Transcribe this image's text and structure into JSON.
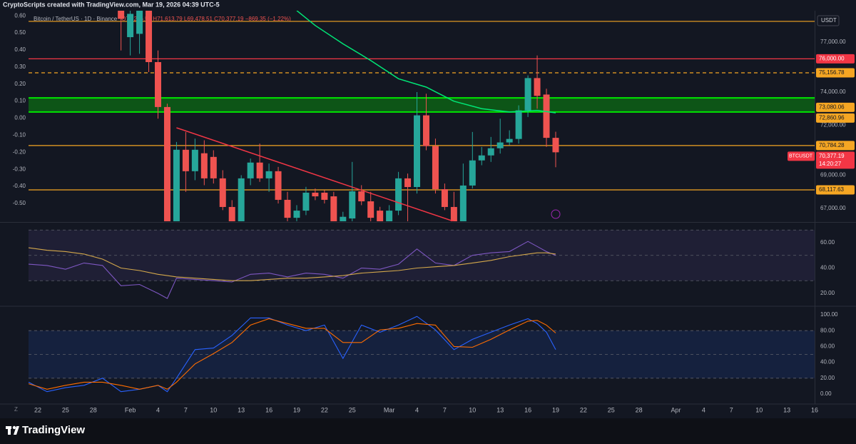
{
  "header": {
    "caption": "CryptoScripts created with TradingView.com, Mar 19, 2026 04:39 UTC-5",
    "symbol": "Bitcoin / TetherUS · 1D · Binance",
    "ohlc": "O71,246.54 H71,613.79 L69,478.51 C70,377.19 −869.35 (−1.22%)"
  },
  "footer": {
    "brand": "TradingView"
  },
  "chart_data": [
    {
      "type": "candlestick",
      "up_color": "#26a69a",
      "down_color": "#ef5350",
      "y_unit": "USDT",
      "x": [
        "2026-01-31",
        "2026-02-01",
        "2026-02-02",
        "2026-02-03",
        "2026-02-04",
        "2026-02-05",
        "2026-02-06",
        "2026-02-07",
        "2026-02-08",
        "2026-02-09",
        "2026-02-10",
        "2026-02-11",
        "2026-02-12",
        "2026-02-13",
        "2026-02-14",
        "2026-02-15",
        "2026-02-16",
        "2026-02-17",
        "2026-02-18",
        "2026-02-19",
        "2026-02-20",
        "2026-02-21",
        "2026-02-22",
        "2026-02-23",
        "2026-02-24",
        "2026-02-25",
        "2026-02-26",
        "2026-02-27",
        "2026-02-28",
        "2026-03-01",
        "2026-03-02",
        "2026-03-03",
        "2026-03-04",
        "2026-03-05",
        "2026-03-06",
        "2026-03-07",
        "2026-03-08",
        "2026-03-09",
        "2026-03-10",
        "2026-03-11",
        "2026-03-12",
        "2026-03-13",
        "2026-03-14",
        "2026-03-15",
        "2026-03-16",
        "2026-03-17",
        "2026-03-18",
        "2026-03-19"
      ],
      "open": [
        79200,
        77300,
        77500,
        78900,
        75800,
        73100,
        62900,
        70530,
        69240,
        70320,
        70100,
        68810,
        67090,
        66220,
        68810,
        69760,
        68810,
        69240,
        67520,
        66440,
        66870,
        67950,
        67950,
        67730,
        66220,
        66400,
        68030,
        67430,
        66870,
        66220,
        66870,
        68810,
        68290,
        72600,
        70750,
        68160,
        67090,
        66220,
        68380,
        69890,
        70190,
        70620,
        70970,
        71180,
        72900,
        74840,
        73850,
        71246.54
      ],
      "high": [
        79500,
        79000,
        79300,
        79300,
        76500,
        73300,
        71000,
        71600,
        71200,
        71100,
        70500,
        69300,
        67500,
        69000,
        70000,
        70900,
        69700,
        69500,
        68000,
        67200,
        68300,
        68200,
        68100,
        68000,
        66800,
        69800,
        68400,
        68000,
        67100,
        67200,
        69200,
        69100,
        74000,
        73900,
        71200,
        68500,
        68000,
        69700,
        71600,
        70700,
        71300,
        72400,
        71700,
        73200,
        75000,
        76200,
        74200,
        71613.79
      ],
      "low": [
        76500,
        76200,
        76300,
        75200,
        72400,
        62700,
        60100,
        68000,
        68700,
        68400,
        68500,
        66900,
        65100,
        65800,
        68400,
        68600,
        68000,
        67300,
        66200,
        66000,
        66600,
        67500,
        67300,
        64500,
        62900,
        66000,
        67200,
        66200,
        65200,
        66000,
        66600,
        66100,
        67900,
        70500,
        67900,
        66900,
        65600,
        66000,
        68200,
        69600,
        69800,
        70300,
        70800,
        70900,
        72500,
        73000,
        70700,
        69478.51
      ],
      "close": [
        78400,
        78700,
        78900,
        75800,
        73100,
        62900,
        70530,
        69240,
        70530,
        68810,
        68810,
        67090,
        66220,
        68810,
        69760,
        68810,
        69240,
        67520,
        66440,
        66870,
        67950,
        67730,
        67520,
        66220,
        66500,
        68030,
        67430,
        66440,
        66220,
        66870,
        68810,
        68290,
        72600,
        70750,
        68160,
        67090,
        66220,
        68380,
        69890,
        70190,
        70620,
        70970,
        71180,
        72900,
        74840,
        73770,
        71246.54,
        70377.19
      ],
      "xlim": [
        "2026-01-21",
        "2026-04-16"
      ],
      "xticks": [
        {
          "value": "2026-01-22",
          "label": "22"
        },
        {
          "value": "2026-01-25",
          "label": "25"
        },
        {
          "value": "2026-01-28",
          "label": "28"
        },
        {
          "value": "2026-02-01",
          "label": "Feb"
        },
        {
          "value": "2026-02-04",
          "label": "4"
        },
        {
          "value": "2026-02-07",
          "label": "7"
        },
        {
          "value": "2026-02-10",
          "label": "10"
        },
        {
          "value": "2026-02-13",
          "label": "13"
        },
        {
          "value": "2026-02-16",
          "label": "16"
        },
        {
          "value": "2026-02-19",
          "label": "19"
        },
        {
          "value": "2026-02-22",
          "label": "22"
        },
        {
          "value": "2026-02-25",
          "label": "25"
        },
        {
          "value": "2026-03-01",
          "label": "Mar"
        },
        {
          "value": "2026-03-04",
          "label": "4"
        },
        {
          "value": "2026-03-07",
          "label": "7"
        },
        {
          "value": "2026-03-10",
          "label": "10"
        },
        {
          "value": "2026-03-13",
          "label": "13"
        },
        {
          "value": "2026-03-16",
          "label": "16"
        },
        {
          "value": "2026-03-19",
          "label": "19"
        },
        {
          "value": "2026-03-22",
          "label": "22"
        },
        {
          "value": "2026-03-25",
          "label": "25"
        },
        {
          "value": "2026-03-28",
          "label": "28"
        },
        {
          "value": "2026-04-01",
          "label": "Apr"
        },
        {
          "value": "2026-04-04",
          "label": "4"
        },
        {
          "value": "2026-04-07",
          "label": "7"
        },
        {
          "value": "2026-04-10",
          "label": "10"
        },
        {
          "value": "2026-04-13",
          "label": "13"
        },
        {
          "value": "2026-04-16",
          "label": "16"
        }
      ],
      "ylim": [
        66230,
        78890
      ],
      "yticks": [
        {
          "value": 77000,
          "label": "77,000.00"
        },
        {
          "value": 74000,
          "label": "74,000.00"
        },
        {
          "value": 72000,
          "label": "72,000.00"
        },
        {
          "value": 69000,
          "label": "69,000.00"
        },
        {
          "value": 67000,
          "label": "67,000.00"
        }
      ],
      "y2lim": [
        -0.605,
        0.63
      ],
      "y2ticks": [
        {
          "value": 0.6,
          "label": "0.60"
        },
        {
          "value": 0.5,
          "label": "0.50"
        },
        {
          "value": 0.4,
          "label": "0.40"
        },
        {
          "value": 0.3,
          "label": "0.30"
        },
        {
          "value": 0.2,
          "label": "0.20"
        },
        {
          "value": 0.1,
          "label": "0.10"
        },
        {
          "value": 0,
          "label": "0.00"
        },
        {
          "value": -0.1,
          "label": "-0.10"
        },
        {
          "value": -0.2,
          "label": "-0.20"
        },
        {
          "value": -0.3,
          "label": "-0.30"
        },
        {
          "value": -0.4,
          "label": "-0.40"
        },
        {
          "value": -0.5,
          "label": "-0.50"
        }
      ],
      "levels": [
        {
          "value": 78250,
          "color": "#f5a623"
        },
        {
          "value": 76000,
          "label": "76,000.00",
          "color": "#f23645"
        },
        {
          "value": 75156.78,
          "label": "75,156.78",
          "color": "#f5a623",
          "dashed": true
        },
        {
          "value": 70784.28,
          "label": "70,784.28",
          "color": "#f5a623"
        },
        {
          "value": 68117.63,
          "label": "68,117.63",
          "color": "#f5a623"
        }
      ],
      "zone": {
        "top": 73650,
        "bottom": 72800,
        "color": "#00e600",
        "labels": [
          {
            "value": 73080.06,
            "label": "73,080.06"
          },
          {
            "value": 72860.96,
            "label": "72,860.96"
          }
        ]
      },
      "ma": {
        "color": "#00e676",
        "x": [
          "2026-02-19",
          "2026-02-21",
          "2026-02-24",
          "2026-02-27",
          "2026-03-02",
          "2026-03-05",
          "2026-03-08",
          "2026-03-11",
          "2026-03-14",
          "2026-03-17",
          "2026-03-19"
        ],
        "values": [
          78900,
          78000,
          76900,
          75900,
          74800,
          74300,
          73450,
          73000,
          72800,
          72900,
          72750
        ]
      },
      "trendline": {
        "color": "#f23645",
        "x": [
          "2026-02-06",
          "2026-03-08"
        ],
        "values": [
          71850,
          66220
        ]
      },
      "last": {
        "value": 70377.19,
        "label": "70,377.19",
        "countdown": "14:20:27",
        "symbol_tag": "BTCUSDT",
        "color": "#f23645"
      }
    },
    {
      "type": "line",
      "x": [
        "2026-01-21",
        "2026-01-23",
        "2026-01-25",
        "2026-01-27",
        "2026-01-29",
        "2026-01-31",
        "2026-02-02",
        "2026-02-04",
        "2026-02-05",
        "2026-02-06",
        "2026-02-08",
        "2026-02-10",
        "2026-02-12",
        "2026-02-14",
        "2026-02-16",
        "2026-02-18",
        "2026-02-20",
        "2026-02-22",
        "2026-02-24",
        "2026-02-26",
        "2026-02-28",
        "2026-03-02",
        "2026-03-04",
        "2026-03-06",
        "2026-03-08",
        "2026-03-10",
        "2026-03-12",
        "2026-03-14",
        "2026-03-16",
        "2026-03-17",
        "2026-03-18",
        "2026-03-19"
      ],
      "series": [
        {
          "color": "#7e57c2",
          "values": [
            43,
            42,
            39,
            44,
            42,
            26,
            27,
            20,
            16,
            32,
            31,
            30,
            29,
            35,
            36,
            33,
            36,
            35,
            32,
            40,
            39,
            43,
            55,
            44,
            42,
            50,
            52,
            53,
            61,
            57,
            53,
            50
          ]
        },
        {
          "color": "#d4a84b",
          "values": [
            56,
            54,
            53,
            51,
            47,
            40,
            38,
            35,
            34,
            33,
            32,
            31,
            30,
            30,
            31,
            32,
            32,
            33,
            34,
            36,
            37,
            38,
            40,
            41,
            42,
            44,
            46,
            49,
            51,
            52,
            52,
            51
          ]
        }
      ],
      "ylim": [
        10.4,
        75.2
      ],
      "yticks": [
        {
          "value": 60,
          "label": "60.00"
        },
        {
          "value": 40,
          "label": "40.00"
        },
        {
          "value": 20,
          "label": "20.00"
        }
      ],
      "band": [
        30,
        70
      ],
      "band_color": "rgba(126,87,194,0.12)",
      "levels": [
        70,
        50,
        30
      ]
    },
    {
      "type": "line",
      "x": [
        "2026-01-21",
        "2026-01-23",
        "2026-01-25",
        "2026-01-27",
        "2026-01-29",
        "2026-01-31",
        "2026-02-02",
        "2026-02-04",
        "2026-02-05",
        "2026-02-06",
        "2026-02-08",
        "2026-02-10",
        "2026-02-12",
        "2026-02-14",
        "2026-02-16",
        "2026-02-18",
        "2026-02-20",
        "2026-02-22",
        "2026-02-24",
        "2026-02-26",
        "2026-02-28",
        "2026-03-02",
        "2026-03-04",
        "2026-03-06",
        "2026-03-08",
        "2026-03-10",
        "2026-03-12",
        "2026-03-14",
        "2026-03-16",
        "2026-03-17",
        "2026-03-18",
        "2026-03-19"
      ],
      "series": [
        {
          "color": "#2962ff",
          "values": [
            15,
            3,
            8,
            11,
            20,
            3,
            6,
            11,
            3,
            20,
            56,
            58,
            74,
            96,
            96,
            87,
            80,
            87,
            45,
            87,
            78,
            87,
            98,
            81,
            56,
            69,
            78,
            87,
            95,
            89,
            78,
            56
          ]
        },
        {
          "color": "#ff6d00",
          "values": [
            13,
            6,
            11,
            15,
            15,
            11,
            6,
            11,
            6,
            15,
            38,
            51,
            65,
            87,
            95,
            89,
            83,
            83,
            65,
            65,
            81,
            83,
            89,
            87,
            60,
            59,
            69,
            81,
            92,
            93,
            87,
            77
          ]
        }
      ],
      "ylim": [
        -11.7,
        109.9
      ],
      "yticks": [
        {
          "value": 100,
          "label": "100.00"
        },
        {
          "value": 80,
          "label": "80.00"
        },
        {
          "value": 60,
          "label": "60.00"
        },
        {
          "value": 40,
          "label": "40.00"
        },
        {
          "value": 20,
          "label": "20.00"
        },
        {
          "value": 0,
          "label": "0.00"
        }
      ],
      "band": [
        20,
        80
      ],
      "band_color": "rgba(41,98,255,0.13)",
      "levels": [
        80,
        50,
        20
      ]
    }
  ]
}
